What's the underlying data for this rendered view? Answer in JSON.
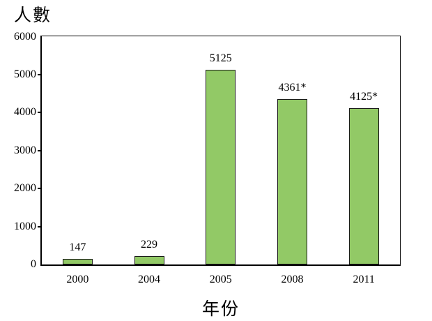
{
  "chart_data": {
    "type": "bar",
    "title": "人數",
    "ylabel": "人數",
    "xlabel": "年份",
    "categories": [
      "2000",
      "2004",
      "2005",
      "2008",
      "2011"
    ],
    "values": [
      147,
      229,
      5125,
      4361,
      4125
    ],
    "value_labels": [
      "147",
      "229",
      "5125",
      "4361*",
      "4125*"
    ],
    "ylim": [
      0,
      6000
    ],
    "ytick_interval": 1000,
    "yticks": [
      0,
      1000,
      2000,
      3000,
      4000,
      5000,
      6000
    ],
    "ytick_labels": [
      "0",
      "1000",
      "2000",
      "3000",
      "4000",
      "5000",
      "6000"
    ],
    "grid": false,
    "legend": false,
    "colors": {
      "bar_fill": "#92C966",
      "bar_border": "#1A1A1A",
      "axis": "#000000",
      "background": "#FFFFFF",
      "text": "#000000"
    }
  }
}
